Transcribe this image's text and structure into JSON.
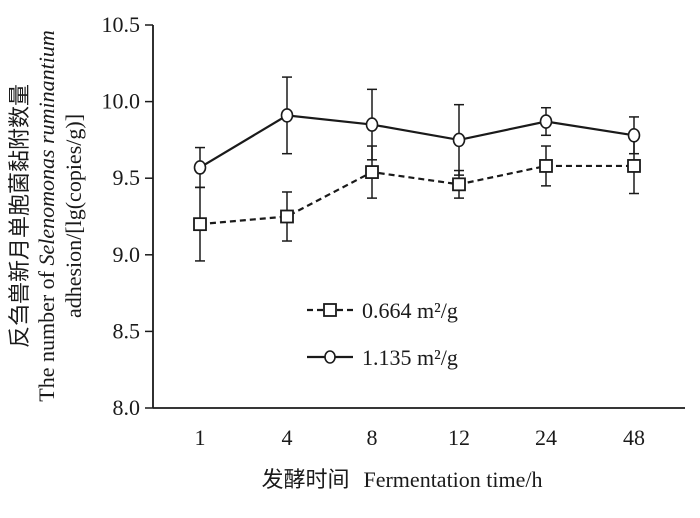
{
  "chart_data": {
    "type": "line",
    "categories": [
      "1",
      "4",
      "8",
      "12",
      "24",
      "48"
    ],
    "xlabel_cn": "发酵时间",
    "xlabel_en": "Fermentation time/h",
    "ylabel_cn": "反刍兽新月单胞菌黏附数量",
    "ylabel_en_prefix": "The number of ",
    "ylabel_en_italic": "Selenomonas ruminantium",
    "ylabel_en2": "adhesion/[lg(copies/g)]",
    "ylim": [
      8.0,
      10.5
    ],
    "yticks": [
      "8.0",
      "8.5",
      "9.0",
      "9.5",
      "10.0",
      "10.5"
    ],
    "grid": false,
    "legend_position": "lower-left",
    "series": [
      {
        "name": "0.664 m²/g",
        "marker": "square",
        "line_style": "dashed",
        "values": [
          9.2,
          9.25,
          9.54,
          9.46,
          9.58,
          9.58
        ],
        "errors": [
          0.24,
          0.16,
          0.17,
          0.09,
          0.13,
          0.18
        ]
      },
      {
        "name": "1.135 m²/g",
        "marker": "circle",
        "line_style": "solid",
        "values": [
          9.57,
          9.91,
          9.85,
          9.75,
          9.87,
          9.78
        ],
        "errors": [
          0.13,
          0.25,
          0.23,
          0.23,
          0.09,
          0.12
        ]
      }
    ],
    "colors": {
      "ink": "#1a1a1a"
    }
  }
}
